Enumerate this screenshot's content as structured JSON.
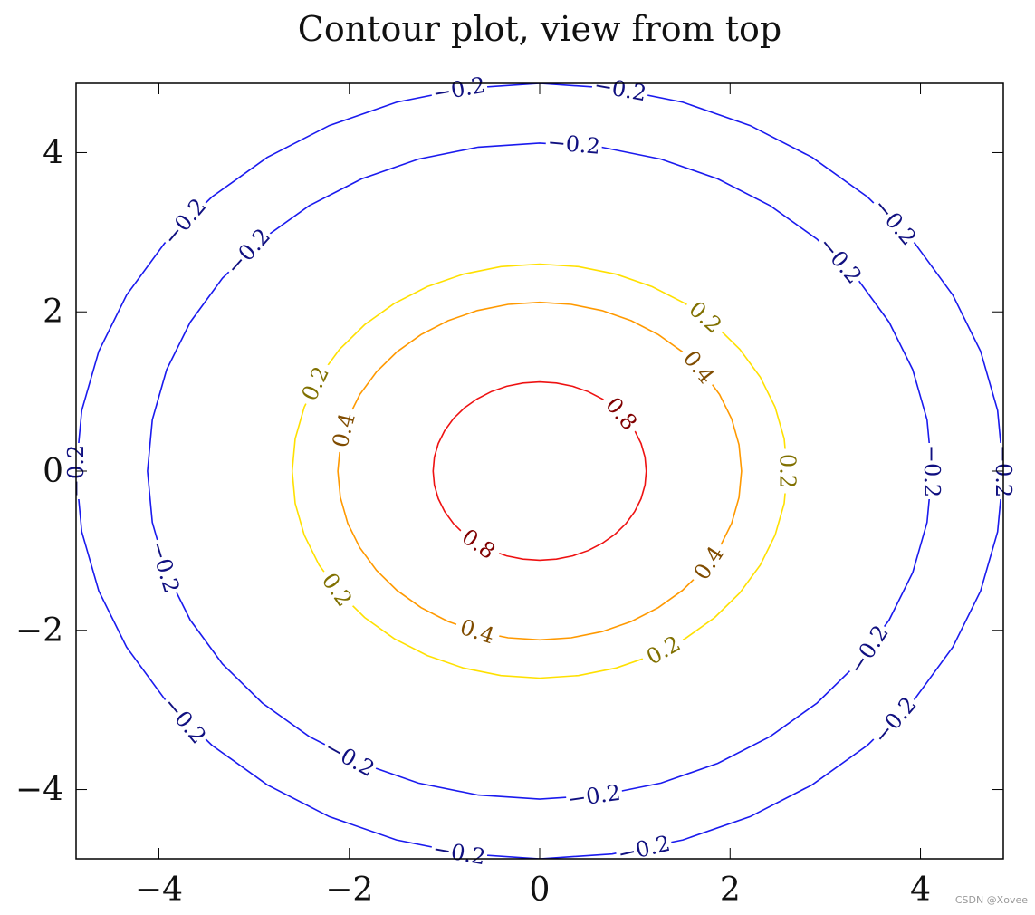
{
  "chart_data": {
    "type": "contour",
    "title": "Contour plot, view from top",
    "xlabel": "",
    "ylabel": "",
    "xlim": [
      -4.87,
      4.87
    ],
    "ylim": [
      -4.87,
      4.87
    ],
    "x_ticks": [
      -4,
      -2,
      0,
      2,
      4
    ],
    "y_ticks": [
      -4,
      -2,
      0,
      2,
      4
    ],
    "x_tick_labels": [
      "−4",
      "−2",
      "0",
      "2",
      "4"
    ],
    "y_tick_labels": [
      "−4",
      "−2",
      "0",
      "2",
      "4"
    ],
    "grid": false,
    "levels": [
      {
        "level": -0.2,
        "radius": 4.87,
        "color": "#1a1aee",
        "label_color": "#101080",
        "labels": [
          {
            "text": "−0.2",
            "angle_deg": 100
          },
          {
            "text": "−0.2",
            "angle_deg": 80
          },
          {
            "text": "−0.2",
            "angle_deg": 140
          },
          {
            "text": "−0.2",
            "angle_deg": 40
          },
          {
            "text": "−0.2",
            "angle_deg": 180
          },
          {
            "text": "−0.2",
            "angle_deg": 0
          },
          {
            "text": "−0.2",
            "angle_deg": 220
          },
          {
            "text": "−0.2",
            "angle_deg": 320
          },
          {
            "text": "−0.2",
            "angle_deg": 260
          },
          {
            "text": "−0.2",
            "angle_deg": 283
          }
        ]
      },
      {
        "level": -0.2,
        "radius": 4.12,
        "color": "#1a1aee",
        "label_color": "#101080",
        "labels": [
          {
            "text": "−0.2",
            "angle_deg": 85
          },
          {
            "text": "−0.2",
            "angle_deg": 138
          },
          {
            "text": "−0.2",
            "angle_deg": 40
          },
          {
            "text": "−0.2",
            "angle_deg": 0
          },
          {
            "text": "−0.2",
            "angle_deg": 197
          },
          {
            "text": "−0.2",
            "angle_deg": 327
          },
          {
            "text": "−0.2",
            "angle_deg": 241
          },
          {
            "text": "−0.2",
            "angle_deg": 278
          }
        ]
      },
      {
        "level": 0.2,
        "radius": 2.6,
        "color": "#ffe000",
        "label_color": "#807000",
        "labels": [
          {
            "text": "0.2",
            "angle_deg": 48
          },
          {
            "text": "0.2",
            "angle_deg": 155
          },
          {
            "text": "0.2",
            "angle_deg": 0
          },
          {
            "text": "0.2",
            "angle_deg": 215
          },
          {
            "text": "0.2",
            "angle_deg": 300
          }
        ]
      },
      {
        "level": 0.4,
        "radius": 2.12,
        "color": "#ff9900",
        "label_color": "#804c00",
        "labels": [
          {
            "text": "0.4",
            "angle_deg": 38
          },
          {
            "text": "0.4",
            "angle_deg": 166
          },
          {
            "text": "0.4",
            "angle_deg": 327
          },
          {
            "text": "0.4",
            "angle_deg": 252
          }
        ]
      },
      {
        "level": 0.8,
        "radius": 1.12,
        "color": "#ee1111",
        "label_color": "#800000",
        "labels": [
          {
            "text": "0.8",
            "angle_deg": 40
          },
          {
            "text": "0.8",
            "angle_deg": 235
          }
        ]
      }
    ]
  },
  "watermark": "CSDN @Xovee"
}
